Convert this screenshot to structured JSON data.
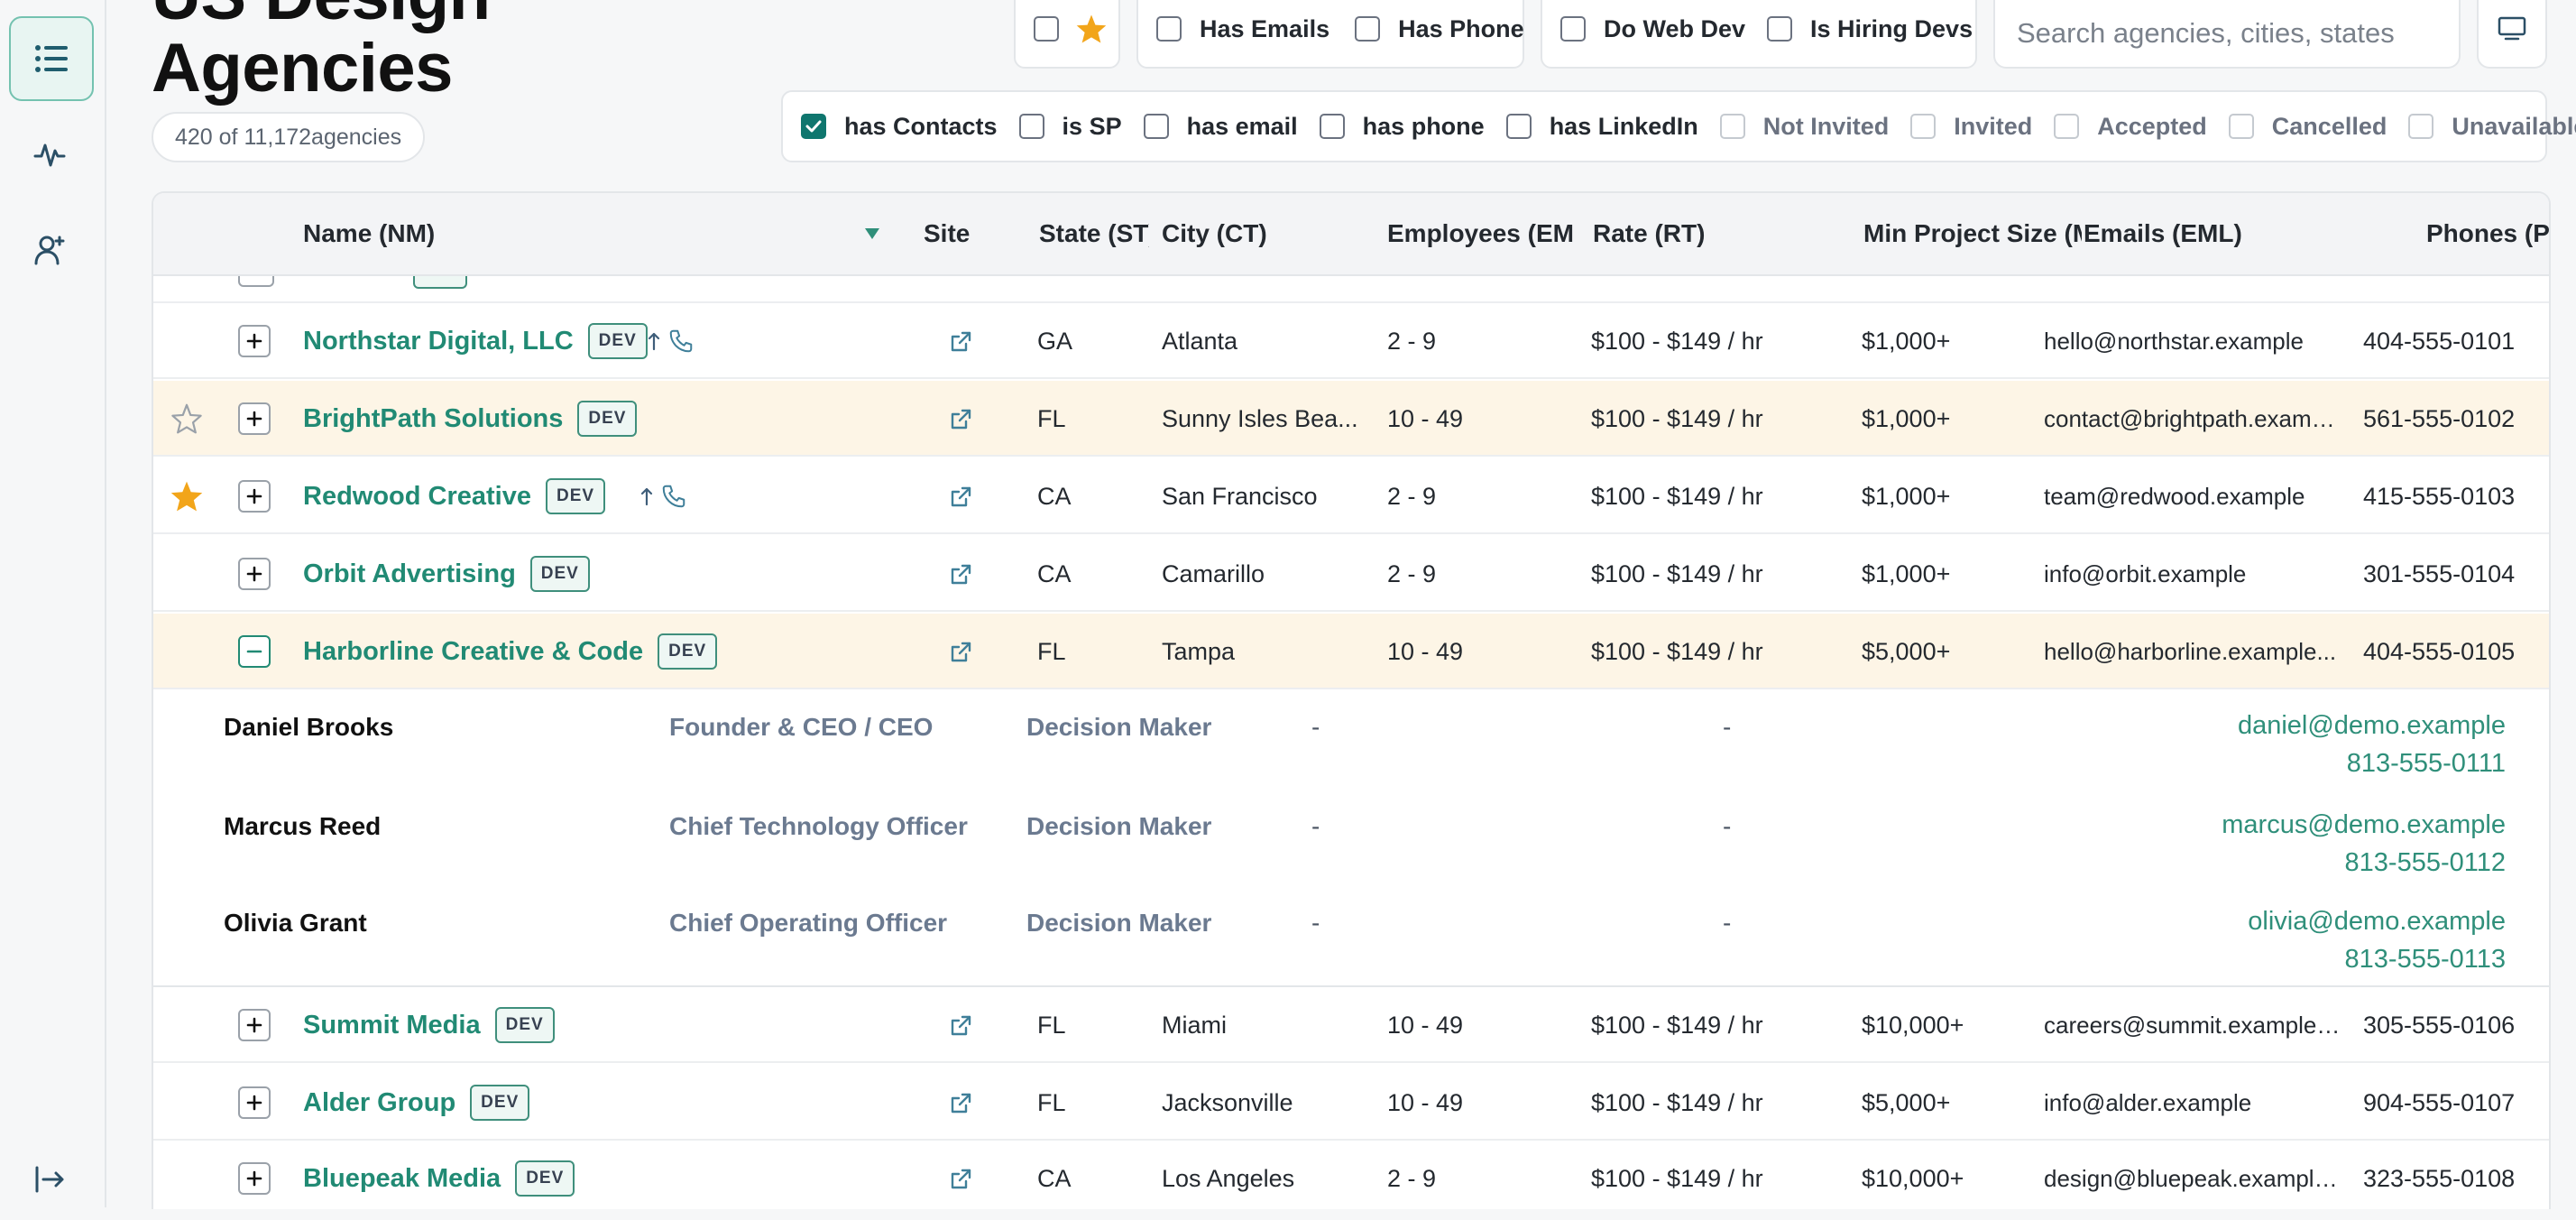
{
  "page": {
    "title_line1": "US Design",
    "title_line2": "Agencies",
    "count_text": "420 of 11,172agencies"
  },
  "quick_filters": {
    "box1": [
      "Has Emails",
      "Has Phone"
    ],
    "box2": [
      "Do Web Dev",
      "Is Hiring Devs"
    ],
    "search_placeholder": "Search agencies, cities, states"
  },
  "filters": {
    "main": [
      {
        "label": "has Contacts",
        "checked": true
      },
      {
        "label": "is SP",
        "checked": false
      },
      {
        "label": "has email",
        "checked": false
      },
      {
        "label": "has phone",
        "checked": false
      },
      {
        "label": "has LinkedIn",
        "checked": false
      }
    ],
    "status": [
      {
        "label": "Not Invited"
      },
      {
        "label": "Invited"
      },
      {
        "label": "Accepted"
      },
      {
        "label": "Cancelled"
      },
      {
        "label": "Unavailable"
      }
    ]
  },
  "table": {
    "columns": {
      "name": "Name (NM)",
      "site": "Site",
      "state": "State (ST)",
      "city": "City (CT)",
      "employees": "Employees (EMP)",
      "rate": "Rate (RT)",
      "min_project": "Min Project Size (MPS)",
      "emails": "Emails (EML)",
      "phones": "Phones (PH)"
    },
    "badge": "DEV",
    "rows": [
      {
        "name": "Northstar Digital, LLC",
        "state": "GA",
        "city": "Atlanta",
        "employees": "2 - 9",
        "rate": "$100 - $149 / hr",
        "min_project": "$1,000+",
        "emails": "hello@northstar.example",
        "phones": "404-555-0101",
        "highlight": false,
        "star": "none",
        "expanded": false,
        "phone_icons": true
      },
      {
        "name": "BrightPath Solutions",
        "state": "FL",
        "city": "Sunny Isles Bea...",
        "employees": "10 - 49",
        "rate": "$100 - $149 / hr",
        "min_project": "$1,000+",
        "emails": "contact@brightpath.example...",
        "phones": "561-555-0102",
        "highlight": true,
        "star": "empty",
        "expanded": false,
        "phone_icons": false
      },
      {
        "name": "Redwood Creative",
        "state": "CA",
        "city": "San Francisco",
        "employees": "2 - 9",
        "rate": "$100 - $149 / hr",
        "min_project": "$1,000+",
        "emails": "team@redwood.example",
        "phones": "415-555-0103",
        "highlight": false,
        "star": "filled",
        "expanded": false,
        "phone_icons": true
      },
      {
        "name": "Orbit Advertising",
        "state": "CA",
        "city": "Camarillo",
        "employees": "2 - 9",
        "rate": "$100 - $149 / hr",
        "min_project": "$1,000+",
        "emails": "info@orbit.example",
        "phones": "301-555-0104",
        "highlight": false,
        "star": "none",
        "expanded": false,
        "phone_icons": false
      },
      {
        "name": "Harborline Creative & Code",
        "state": "FL",
        "city": "Tampa",
        "employees": "10 - 49",
        "rate": "$100 - $149 / hr",
        "min_project": "$5,000+",
        "emails": "hello@harborline.example...",
        "phones": "404-555-0105",
        "highlight": true,
        "star": "none",
        "expanded": true,
        "phone_icons": false
      },
      {
        "name": "Summit Media",
        "state": "FL",
        "city": "Miami",
        "employees": "10 - 49",
        "rate": "$100 - $149 / hr",
        "min_project": "$10,000+",
        "emails": "careers@summit.example; i...",
        "phones": "305-555-0106",
        "highlight": false,
        "star": "none",
        "expanded": false,
        "phone_icons": false
      },
      {
        "name": "Alder Group",
        "state": "FL",
        "city": "Jacksonville",
        "employees": "10 - 49",
        "rate": "$100 - $149 / hr",
        "min_project": "$5,000+",
        "emails": "info@alder.example",
        "phones": "904-555-0107",
        "highlight": false,
        "star": "none",
        "expanded": false,
        "phone_icons": false
      },
      {
        "name": "Bluepeak Media",
        "state": "CA",
        "city": "Los Angeles",
        "employees": "2 - 9",
        "rate": "$100 - $149 / hr",
        "min_project": "$10,000+",
        "emails": "design@bluepeak.example; g...",
        "phones": "323-555-0108",
        "highlight": false,
        "star": "none",
        "expanded": false,
        "phone_icons": false
      }
    ],
    "contacts": [
      {
        "name": "Daniel Brooks",
        "title": "Founder & CEO / CEO",
        "role": "Decision Maker",
        "dash1": "-",
        "dash2": "-",
        "email": "daniel@demo.example",
        "phone": "813-555-0111"
      },
      {
        "name": "Marcus Reed",
        "title": "Chief Technology Officer",
        "role": "Decision Maker",
        "dash1": "-",
        "dash2": "-",
        "email": "marcus@demo.example",
        "phone": "813-555-0112"
      },
      {
        "name": "Olivia Grant",
        "title": "Chief Operating Officer",
        "role": "Decision Maker",
        "dash1": "-",
        "dash2": "-",
        "email": "olivia@demo.example",
        "phone": "813-555-0113"
      }
    ]
  },
  "colors": {
    "accent": "#218a74",
    "highlight_row": "#fdf5e6",
    "star": "#f2a51a"
  },
  "icons": {
    "rail": [
      "list-icon",
      "activity-icon",
      "user-add-icon",
      "logout-icon"
    ],
    "external": "external-link-icon",
    "star": "star-icon",
    "phone": "phone-icon",
    "up": "arrow-up-icon",
    "monitor": "monitor-icon"
  }
}
